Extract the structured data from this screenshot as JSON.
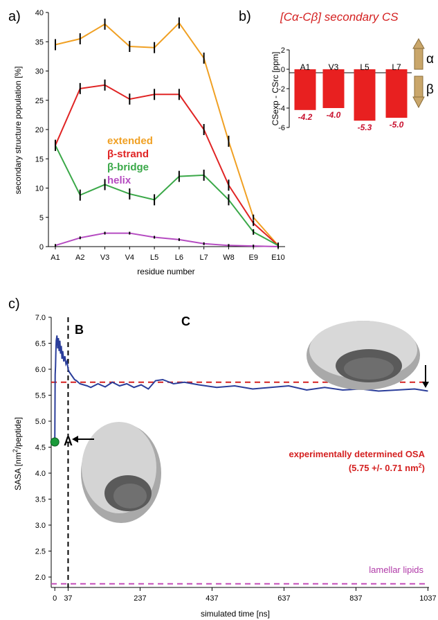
{
  "panel_labels": {
    "a": "a)",
    "b": "b)",
    "c": "c)"
  },
  "colors": {
    "extended": "#f0a023",
    "beta_strand": "#e02424",
    "beta_bridge": "#3aa848",
    "helix": "#b54bc1",
    "sasa": "#2a3d9a",
    "ref": "#d42020",
    "lipid": "#c44cb8",
    "bar": "#e82020",
    "point_A": "#1a9a3a"
  },
  "chart_data": [
    {
      "type": "line",
      "ylabel": "secondary structure population [%]",
      "xlabel": "residue number",
      "categories": [
        "A1",
        "A2",
        "V3",
        "V4",
        "L5",
        "L6",
        "L7",
        "W8",
        "E9",
        "E10"
      ],
      "ylim": [
        0,
        40
      ],
      "yticks": [
        0,
        5,
        10,
        15,
        20,
        25,
        30,
        35,
        40
      ],
      "series": [
        {
          "name": "extended",
          "color_key": "extended",
          "values": [
            34.5,
            35.5,
            38.0,
            34.2,
            34.0,
            38.2,
            32.2,
            18.0,
            5.0,
            0.2
          ],
          "errors": true
        },
        {
          "name": "β-strand",
          "color_key": "beta_strand",
          "values": [
            17.3,
            27.0,
            27.6,
            25.2,
            26.0,
            26.0,
            20.0,
            10.5,
            4.0,
            0.2
          ],
          "errors": true
        },
        {
          "name": "β-bridge",
          "color_key": "beta_bridge",
          "values": [
            17.3,
            8.8,
            10.6,
            9.0,
            8.0,
            12.0,
            12.2,
            8.0,
            2.5,
            0.2
          ],
          "errors": true
        },
        {
          "name": "helix",
          "color_key": "helix",
          "values": [
            0.2,
            1.5,
            2.3,
            2.3,
            1.6,
            1.2,
            0.5,
            0.2,
            0.1,
            0.0
          ],
          "errors": true
        }
      ]
    },
    {
      "type": "bar",
      "title": "[Cα-Cβ] secondary CS",
      "ylabel": "CSexp - CSrc [ppm]",
      "categories": [
        "A1",
        "V3",
        "L5",
        "L7"
      ],
      "values": [
        -4.2,
        -4.0,
        -5.3,
        -5.0
      ],
      "value_labels": [
        "-4.2",
        "-4.0",
        "-5.3",
        "-5.0"
      ],
      "ylim": [
        -6,
        2
      ],
      "yticks": [
        2,
        0,
        -2,
        -4,
        -6
      ],
      "arrows": {
        "up": "α",
        "down": "β"
      }
    },
    {
      "type": "line",
      "ylabel": "SASA [nm2/peptide]",
      "xlabel": "simulated time [ns]",
      "ylim": [
        1.8,
        7.0
      ],
      "yticks": [
        2.0,
        2.5,
        3.0,
        3.5,
        4.0,
        4.5,
        5.0,
        5.5,
        6.0,
        6.5,
        7.0
      ],
      "xticks": [
        0,
        37,
        237,
        437,
        637,
        837,
        1037
      ],
      "xlim": [
        -10,
        1040
      ],
      "reference_lines": [
        {
          "y": 5.75,
          "label": "experimentally determined OSA",
          "label2": "(5.75 +/- 0.71 nm2)",
          "color_key": "ref"
        },
        {
          "y": 1.87,
          "label": "lamellar lipids",
          "color_key": "lipid"
        }
      ],
      "vline_x": 37,
      "regions": [
        "A",
        "B",
        "C"
      ],
      "start_point": {
        "x": 0,
        "y": 4.6
      },
      "series": [
        {
          "x": [
            0,
            1,
            2,
            3,
            4,
            6,
            8,
            10,
            12,
            14,
            16,
            18,
            20,
            22,
            25,
            28,
            31,
            34,
            37,
            40,
            45,
            50,
            55,
            60,
            70,
            80,
            90,
            100,
            120,
            140,
            160,
            180,
            200,
            220,
            240,
            260,
            280,
            300,
            330,
            360,
            400,
            450,
            500,
            550,
            600,
            650,
            700,
            750,
            800,
            850,
            900,
            950,
            1000,
            1037
          ],
          "y": [
            4.6,
            5.9,
            6.05,
            6.35,
            6.55,
            6.65,
            6.4,
            6.6,
            6.35,
            6.55,
            6.3,
            6.45,
            6.2,
            6.35,
            6.15,
            6.25,
            6.1,
            6.15,
            6.0,
            5.95,
            5.9,
            5.85,
            5.8,
            5.78,
            5.72,
            5.7,
            5.68,
            5.65,
            5.72,
            5.66,
            5.75,
            5.68,
            5.72,
            5.65,
            5.7,
            5.62,
            5.78,
            5.8,
            5.72,
            5.75,
            5.7,
            5.65,
            5.68,
            5.62,
            5.65,
            5.68,
            5.6,
            5.65,
            5.6,
            5.62,
            5.58,
            5.6,
            5.62,
            5.58
          ]
        }
      ]
    }
  ],
  "annotations": {
    "legend_extended": "extended",
    "legend_strand": "β-strand",
    "legend_bridge": "β-bridge",
    "legend_helix": "helix",
    "region_A": "A",
    "region_B": "B",
    "region_C": "C",
    "osa_line1": "experimentally determined OSA",
    "osa_line2_pre": "(5.75 +/- 0.71 nm",
    "osa_line2_sup": "2",
    "osa_line2_post": ")",
    "lipid_label": "lamellar lipids",
    "alpha": "α",
    "beta": "β",
    "ylabel_a": "secondary structure population [%]",
    "xlabel_a": "residue number",
    "ylabel_b": "CSexp - CSrc  [ppm]",
    "ylabel_c_pre": "SASA [nm",
    "ylabel_c_sup": "2",
    "ylabel_c_post": "/peptide]",
    "xlabel_c": "simulated time [ns]",
    "cs_title": "[Cα-Cβ] secondary CS"
  }
}
